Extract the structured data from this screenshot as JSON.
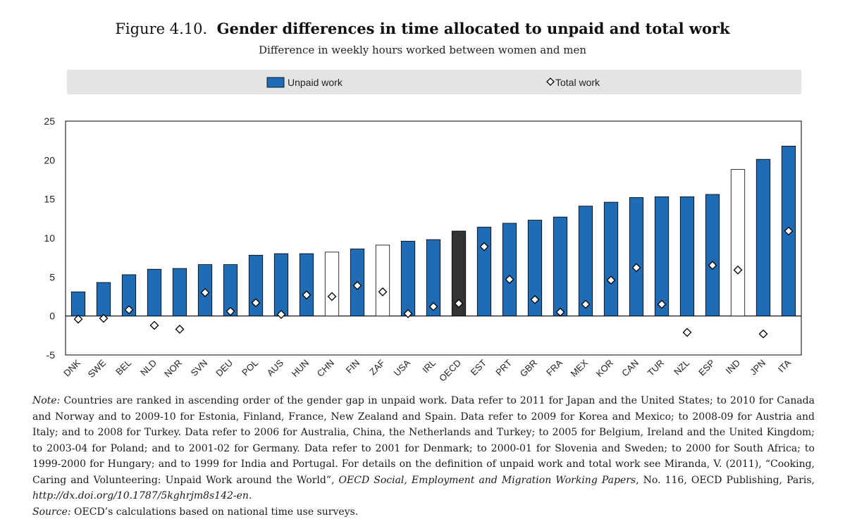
{
  "title": {
    "figure_label": "Figure 4.10.",
    "main": "Gender differences in time allocated to unpaid and total work"
  },
  "subtitle": "Difference in weekly hours worked between women and men",
  "legend": {
    "unpaid_label": "Unpaid work",
    "total_label": "Total work"
  },
  "colors": {
    "unpaid": "#1f6cb5",
    "oecd": "#333333",
    "highlight_fill": "#ffffff",
    "legend_band": "#e4e4e4"
  },
  "chart_data": {
    "type": "bar",
    "categories": [
      "DNK",
      "SWE",
      "BEL",
      "NLD",
      "NOR",
      "SVN",
      "DEU",
      "POL",
      "AUS",
      "HUN",
      "CHN",
      "FIN",
      "ZAF",
      "USA",
      "IRL",
      "OECD",
      "EST",
      "PRT",
      "GBR",
      "FRA",
      "MEX",
      "KOR",
      "CAN",
      "TUR",
      "NZL",
      "ESP",
      "IND",
      "JPN",
      "ITA"
    ],
    "series": [
      {
        "name": "Unpaid work",
        "values": [
          3.1,
          4.3,
          5.3,
          6.0,
          6.1,
          6.6,
          6.6,
          7.8,
          8.0,
          8.0,
          8.2,
          8.6,
          9.1,
          9.6,
          9.8,
          10.9,
          11.4,
          11.9,
          12.3,
          12.7,
          14.1,
          14.6,
          15.2,
          15.3,
          15.3,
          15.6,
          18.8,
          20.1,
          21.8
        ]
      },
      {
        "name": "Total work",
        "values": [
          -0.4,
          -0.3,
          0.8,
          -1.2,
          -1.7,
          3.0,
          0.6,
          1.7,
          0.2,
          2.7,
          2.5,
          3.9,
          3.1,
          0.3,
          1.2,
          1.6,
          8.9,
          4.7,
          2.1,
          0.5,
          1.5,
          4.6,
          6.2,
          1.5,
          -2.1,
          6.5,
          5.9,
          -2.3,
          10.9
        ]
      }
    ],
    "bar_style": {
      "OECD": "oecd",
      "CHN": "outline",
      "ZAF": "outline",
      "IND": "outline"
    },
    "ylim": [
      -5,
      25
    ],
    "yticks": [
      -5,
      0,
      5,
      10,
      15,
      20,
      25
    ],
    "grid": false,
    "legend_position": "top"
  },
  "notes": {
    "note_label": "Note:",
    "note_text": "Countries are ranked in ascending order of the gender gap in unpaid work. Data refer to 2011 for Japan and the United States; to 2010 for Canada and Norway and to 2009-10 for Estonia, Finland, France, New Zealand and Spain. Data refer to 2009 for Korea and Mexico; to 2008-09 for Austria and Italy; and to 2008 for Turkey. Data refer to 2006 for Australia, China, the Netherlands and Turkey; to 2005 for Belgium, Ireland and the United Kingdom; to 2003-04 for Poland; and to 2001-02 for Germany. Data refer to 2001 for Denmark; to 2000-01 for Slovenia and Sweden; to 2000 for South Africa; to 1999-2000 for Hungary; and to 1999 for India and Portugal. For details on the definition of unpaid work and total work see Miranda, V. (2011), “Cooking, Caring and Volunteering: Unpaid Work around the World”,",
    "series_italic": "OECD Social, Employment and Migration Working Papers",
    "series_rest": ", No. 116, OECD Publishing, Paris,",
    "doi_italic": "http://dx.doi.org/10.1787/5kghrjm8s142-en",
    "doi_end": ".",
    "source_label": "Source:",
    "source_text": "OECD’s calculations based on national time use surveys."
  }
}
